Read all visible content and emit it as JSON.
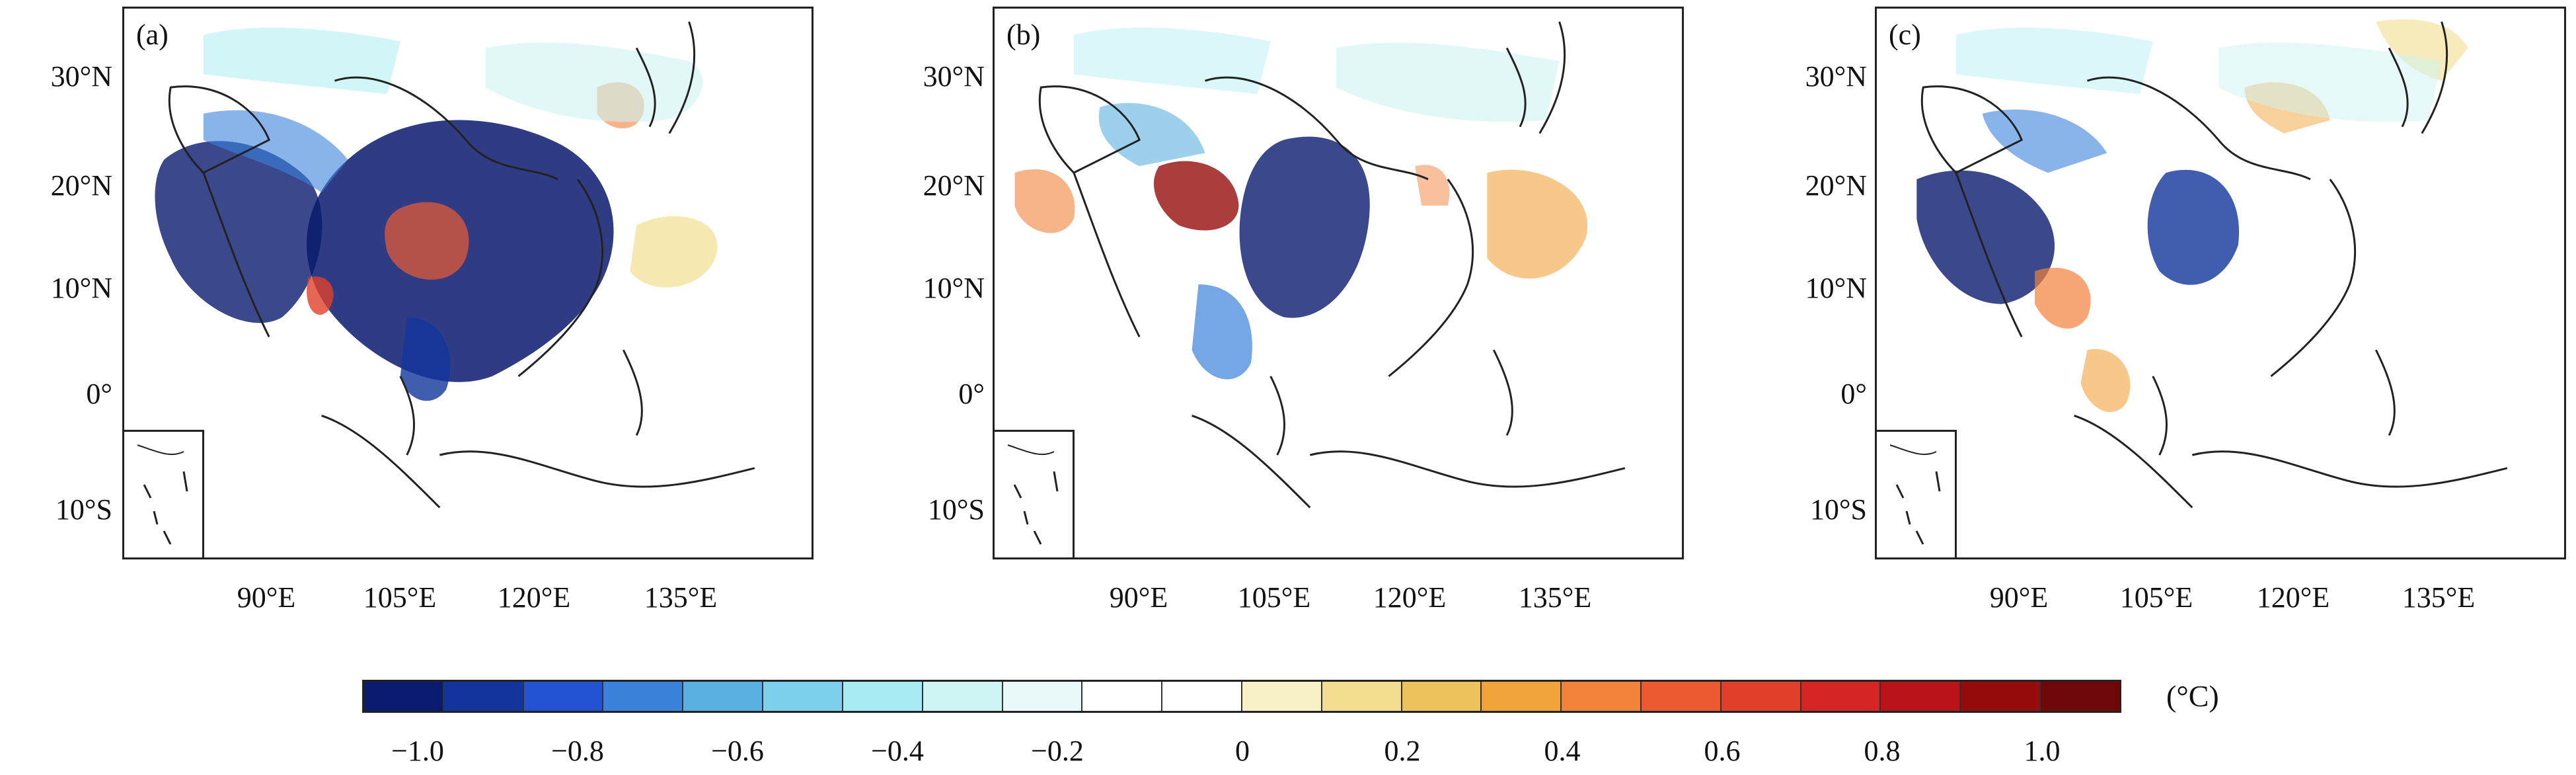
{
  "panels": [
    {
      "id": "a",
      "label": "(a)"
    },
    {
      "id": "b",
      "label": "(b)"
    },
    {
      "id": "c",
      "label": "(c)"
    }
  ],
  "lat_labels": [
    "30°N",
    "20°N",
    "10°N",
    "0°",
    "10°S"
  ],
  "lon_labels": [
    "90°E",
    "105°E",
    "120°E",
    "135°E"
  ],
  "colorbar": {
    "unit": "(°C)",
    "tick_labels": [
      "−1.0",
      "−0.8",
      "−0.6",
      "−0.4",
      "−0.2",
      "0",
      "0.2",
      "0.4",
      "0.6",
      "0.8",
      "1.0"
    ],
    "colors": [
      "#0a1a6e",
      "#12349c",
      "#2352d0",
      "#3b82dd",
      "#5ab0e0",
      "#7cd0ec",
      "#a6ecf2",
      "#cdf4f2",
      "#e8f8f8",
      "#ffffff",
      "#ffffff",
      "#f8f0c6",
      "#f2de90",
      "#edc25c",
      "#f2a43c",
      "#f2823a",
      "#ec5a32",
      "#e0402a",
      "#d42424",
      "#b8141a",
      "#960c0c",
      "#6e0808"
    ]
  },
  "map_extent": {
    "lon_range": [
      75,
      150
    ],
    "lat_range": [
      -15,
      36
    ],
    "lon_ticks": [
      90,
      105,
      120,
      135
    ],
    "lat_ticks": [
      30,
      20,
      10,
      0,
      -10
    ]
  }
}
